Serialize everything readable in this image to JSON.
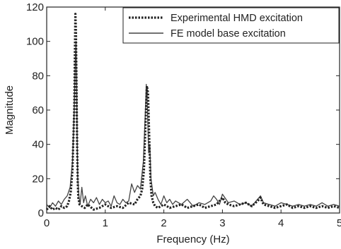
{
  "chart_data": {
    "type": "line",
    "title": "",
    "xlabel": "Frequency (Hz)",
    "ylabel": "Magnitude",
    "xlim": [
      0,
      5
    ],
    "ylim": [
      0,
      120
    ],
    "xticks": [
      0,
      1,
      2,
      3,
      4,
      5
    ],
    "yticks": [
      0,
      20,
      40,
      60,
      80,
      100,
      120
    ],
    "grid": false,
    "legend_position": "top-right",
    "series": [
      {
        "name": "Experimental HMD excitation",
        "style": "dotted",
        "color": "#222222",
        "x": [
          0,
          0.05,
          0.1,
          0.15,
          0.2,
          0.25,
          0.3,
          0.35,
          0.38,
          0.41,
          0.44,
          0.47,
          0.48,
          0.49,
          0.5,
          0.51,
          0.52,
          0.53,
          0.54,
          0.56,
          0.6,
          0.65,
          0.7,
          0.8,
          0.9,
          1.0,
          1.1,
          1.2,
          1.3,
          1.4,
          1.5,
          1.55,
          1.6,
          1.63,
          1.66,
          1.69,
          1.71,
          1.73,
          1.75,
          1.77,
          1.79,
          1.82,
          1.85,
          1.9,
          2.0,
          2.1,
          2.2,
          2.3,
          2.4,
          2.5,
          2.6,
          2.7,
          2.8,
          2.9,
          3.0,
          3.05,
          3.1,
          3.2,
          3.3,
          3.4,
          3.5,
          3.6,
          3.65,
          3.7,
          3.8,
          3.9,
          4.0,
          4.1,
          4.2,
          4.3,
          4.4,
          4.5,
          4.6,
          4.7,
          4.8,
          4.9,
          5.0
        ],
        "y": [
          2,
          4,
          2,
          3,
          2,
          4,
          3,
          4,
          7,
          12,
          25,
          60,
          90,
          116,
          105,
          72,
          38,
          18,
          9,
          5,
          4,
          3,
          5,
          2,
          3,
          5,
          3,
          4,
          3,
          6,
          5,
          8,
          10,
          14,
          25,
          55,
          74,
          70,
          45,
          20,
          10,
          6,
          4,
          3,
          5,
          3,
          4,
          5,
          3,
          4,
          5,
          3,
          4,
          5,
          9,
          6,
          5,
          4,
          5,
          6,
          4,
          7,
          9,
          5,
          4,
          3,
          4,
          5,
          3,
          4,
          3,
          4,
          3,
          4,
          3,
          4,
          3
        ]
      },
      {
        "name": "FE model base excitation",
        "style": "solid",
        "color": "#444444",
        "x": [
          0,
          0.05,
          0.1,
          0.15,
          0.2,
          0.25,
          0.3,
          0.35,
          0.4,
          0.44,
          0.47,
          0.49,
          0.5,
          0.51,
          0.52,
          0.53,
          0.55,
          0.57,
          0.6,
          0.63,
          0.66,
          0.7,
          0.75,
          0.8,
          0.85,
          0.9,
          0.95,
          1.0,
          1.05,
          1.1,
          1.15,
          1.2,
          1.25,
          1.3,
          1.35,
          1.4,
          1.45,
          1.5,
          1.55,
          1.6,
          1.65,
          1.68,
          1.7,
          1.72,
          1.74,
          1.76,
          1.78,
          1.8,
          1.82,
          1.85,
          1.9,
          1.95,
          2.0,
          2.05,
          2.1,
          2.15,
          2.2,
          2.3,
          2.4,
          2.5,
          2.6,
          2.7,
          2.8,
          2.85,
          2.9,
          2.95,
          3.0,
          3.1,
          3.2,
          3.3,
          3.4,
          3.5,
          3.6,
          3.65,
          3.7,
          3.8,
          3.9,
          4.0,
          4.1,
          4.2,
          4.3,
          4.4,
          4.5,
          4.6,
          4.7,
          4.8,
          4.9,
          5.0
        ],
        "y": [
          5,
          3,
          6,
          4,
          7,
          5,
          8,
          10,
          15,
          30,
          60,
          90,
          100,
          80,
          45,
          20,
          10,
          5,
          15,
          6,
          10,
          4,
          8,
          6,
          9,
          5,
          8,
          6,
          7,
          4,
          10,
          6,
          5,
          8,
          6,
          7,
          17,
          12,
          16,
          14,
          30,
          55,
          75,
          60,
          35,
          40,
          20,
          15,
          10,
          12,
          8,
          5,
          10,
          6,
          8,
          5,
          7,
          5,
          8,
          4,
          6,
          5,
          7,
          10,
          8,
          5,
          11,
          6,
          7,
          5,
          6,
          4,
          8,
          10,
          6,
          5,
          4,
          6,
          5,
          4,
          5,
          4,
          5,
          4,
          6,
          4,
          5,
          4
        ]
      }
    ]
  }
}
